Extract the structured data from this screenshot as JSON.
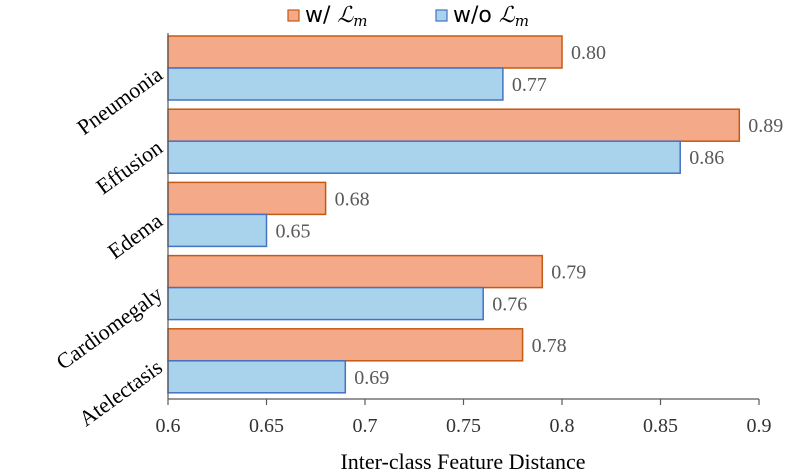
{
  "chart_data": {
    "type": "bar",
    "orientation": "horizontal",
    "title": "",
    "xlabel": "Inter-class Feature Distance",
    "ylabel": "",
    "xlim": [
      0.6,
      0.9
    ],
    "xticks": [
      "0.6",
      "0.65",
      "0.7",
      "0.75",
      "0.8",
      "0.85",
      "0.9"
    ],
    "categories": [
      "Pneumonia",
      "Effusion",
      "Edema",
      "Cardiomegaly",
      "Atelectasis"
    ],
    "legend_position": "top",
    "series": [
      {
        "name": "w/ ℒm",
        "legend_prefix": "w/ ",
        "legend_script": "ℒ",
        "legend_sub": "m",
        "color": "#f4a988",
        "edge": "#c55a11",
        "values": [
          0.8,
          0.89,
          0.68,
          0.79,
          0.78
        ],
        "labels": [
          "0.80",
          "0.89",
          "0.68",
          "0.79",
          "0.78"
        ]
      },
      {
        "name": "w/o ℒm",
        "legend_prefix": "w/o ",
        "legend_script": "ℒ",
        "legend_sub": "m",
        "color": "#a9d3ec",
        "edge": "#4472c4",
        "values": [
          0.77,
          0.86,
          0.65,
          0.76,
          0.69
        ],
        "labels": [
          "0.77",
          "0.86",
          "0.65",
          "0.76",
          "0.69"
        ]
      }
    ]
  }
}
